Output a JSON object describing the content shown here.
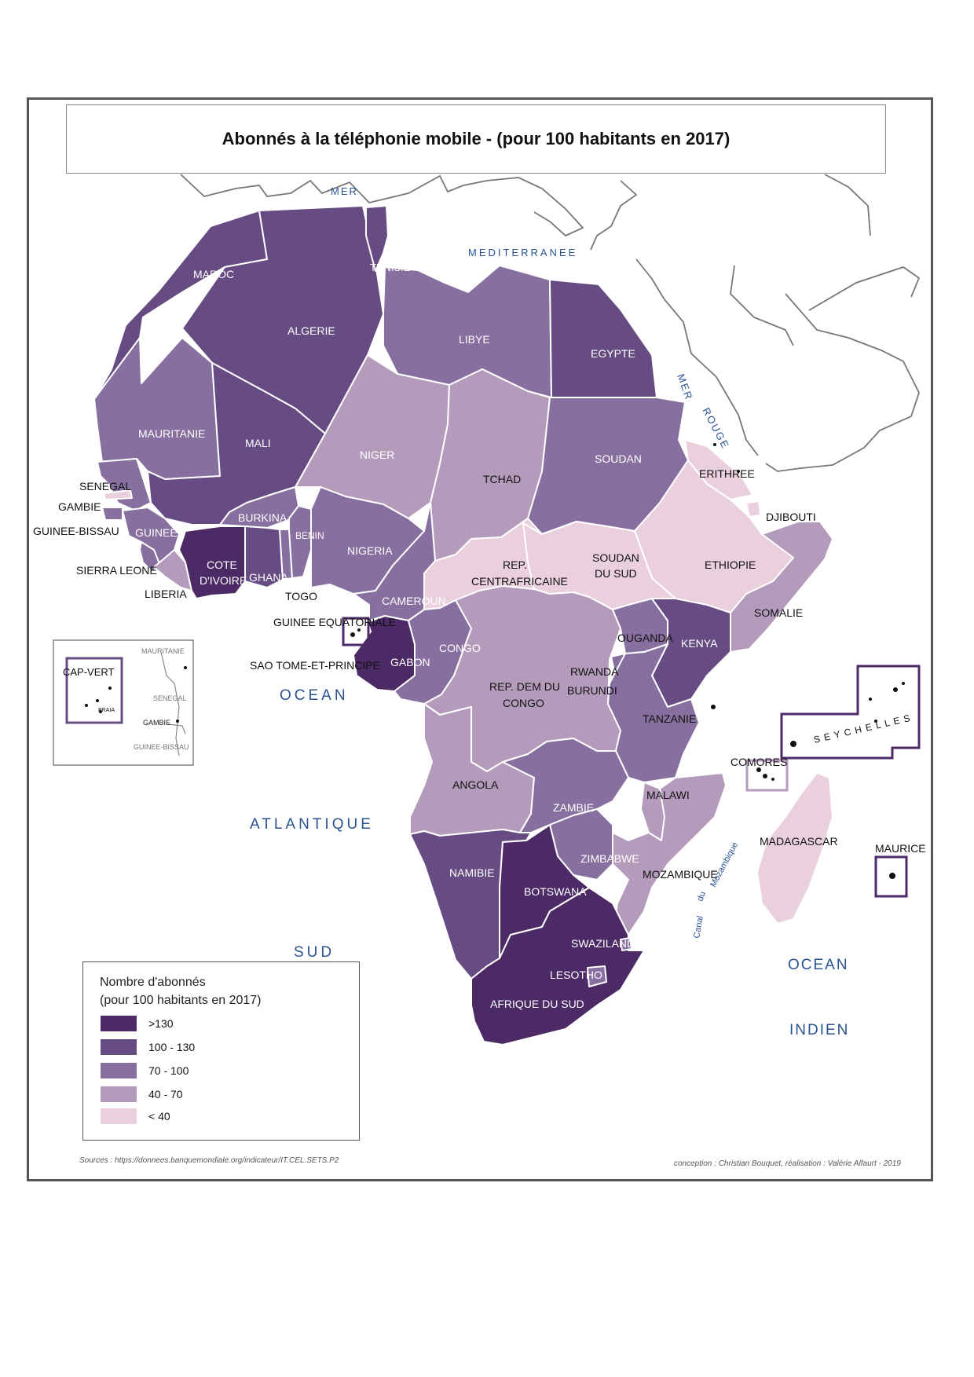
{
  "title": "Abonnés à la téléphonie mobile - (pour 100 habitants en 2017)",
  "colors": {
    "c130": "#4c2a66",
    "c100": "#664c83",
    "c70": "#876f9f",
    "c40": "#b49bbb",
    "c0": "#ead0dc",
    "border": "#ffffff",
    "coast": "#777777",
    "frame": "#555555",
    "sea_text": "#2a5294"
  },
  "legend": {
    "title_line1": "Nombre d'abonnés",
    "title_line2": "(pour 100 habitants en 2017)",
    "classes": [
      {
        "label": ">130",
        "color": "#4c2a66"
      },
      {
        "label": "100 - 130",
        "color": "#664c83"
      },
      {
        "label": "70  - 100",
        "color": "#876f9f"
      },
      {
        "label": "40  - 70",
        "color": "#b49bbb"
      },
      {
        "label": "< 40",
        "color": "#ead0dc"
      }
    ]
  },
  "seas": {
    "mer": "MER",
    "mediterranee": "MEDITERRANEE",
    "mer_rouge_1": "MER",
    "mer_rouge_2": "ROUGE",
    "ocean_atl_1": "OCEAN",
    "ocean_atl_2": "ATLANTIQUE",
    "ocean_atl_3": "SUD",
    "ocean_ind_1": "OCEAN",
    "ocean_ind_2": "INDIEN",
    "canal": "Canal",
    "du": "du",
    "mozambique_channel": "Mozambique"
  },
  "countries": {
    "maroc": "MAROC",
    "algerie": "ALGERIE",
    "tunisie": "TUNISIE",
    "libye": "LIBYE",
    "egypte": "EGYPTE",
    "mauritanie": "MAURITANIE",
    "mali": "MALI",
    "niger": "NIGER",
    "tchad": "TCHAD",
    "soudan": "SOUDAN",
    "erithree": "ERITHREE",
    "djibouti": "DJIBOUTI",
    "ethiopie": "ETHIOPIE",
    "somalie": "SOMALIE",
    "senegal": "SENEGAL",
    "gambie": "GAMBIE",
    "guinee_bissau": "GUINEE-BISSAU",
    "guinee": "GUINEE",
    "sierra_leone": "SIERRA LEONE",
    "liberia": "LIBERIA",
    "cote_divoire_1": "COTE",
    "cote_divoire_2": "D'IVOIRE",
    "burkina": "BURKINA",
    "ghana": "GHANA",
    "togo": "TOGO",
    "benin": "BENIN",
    "nigeria": "NIGERIA",
    "cameroun": "CAMEROUN",
    "rca_1": "REP.",
    "rca_2": "CENTRAFRICAINE",
    "soudan_sud_1": "SOUDAN",
    "soudan_sud_2": "DU SUD",
    "guinee_eq": "GUINEE EQUATORIALE",
    "stp": "SAO TOME-ET-PRINCIPE",
    "gabon": "GABON",
    "congo": "CONGO",
    "rdc_1": "REP. DEM DU",
    "rdc_2": "CONGO",
    "ouganda": "OUGANDA",
    "kenya": "KENYA",
    "rwanda": "RWANDA",
    "burundi": "BURUNDI",
    "tanzanie": "TANZANIE",
    "angola": "ANGOLA",
    "zambie": "ZAMBIE",
    "malawi": "MALAWI",
    "mozambique": "MOZAMBIQUE",
    "zimbabwe": "ZIMBABWE",
    "namibie": "NAMIBIE",
    "botswana": "BOTSWANA",
    "swaziland": "SWAZILAND",
    "lesotho": "LESOTHO",
    "afrique_sud": "AFRIQUE DU SUD",
    "madagascar": "MADAGASCAR",
    "comores": "COMORES",
    "seychelles": "S E Y C H E L L E S",
    "maurice": "MAURICE"
  },
  "inset": {
    "cap_vert": "CAP-VERT",
    "praia": "PRAIA",
    "mauritanie": "MAURITANIE",
    "senegal": "SENEGAL",
    "gambie": "GAMBIE",
    "guinee_bissau": "GUINEE-BISSAU"
  },
  "sources": "Sources : https://donnees.banquemondiale.org/indicateur/IT.CEL.SETS.P2",
  "credits": "conception : Christian Bouquet, réalisation : Valérie Alfaurt - 2019"
}
